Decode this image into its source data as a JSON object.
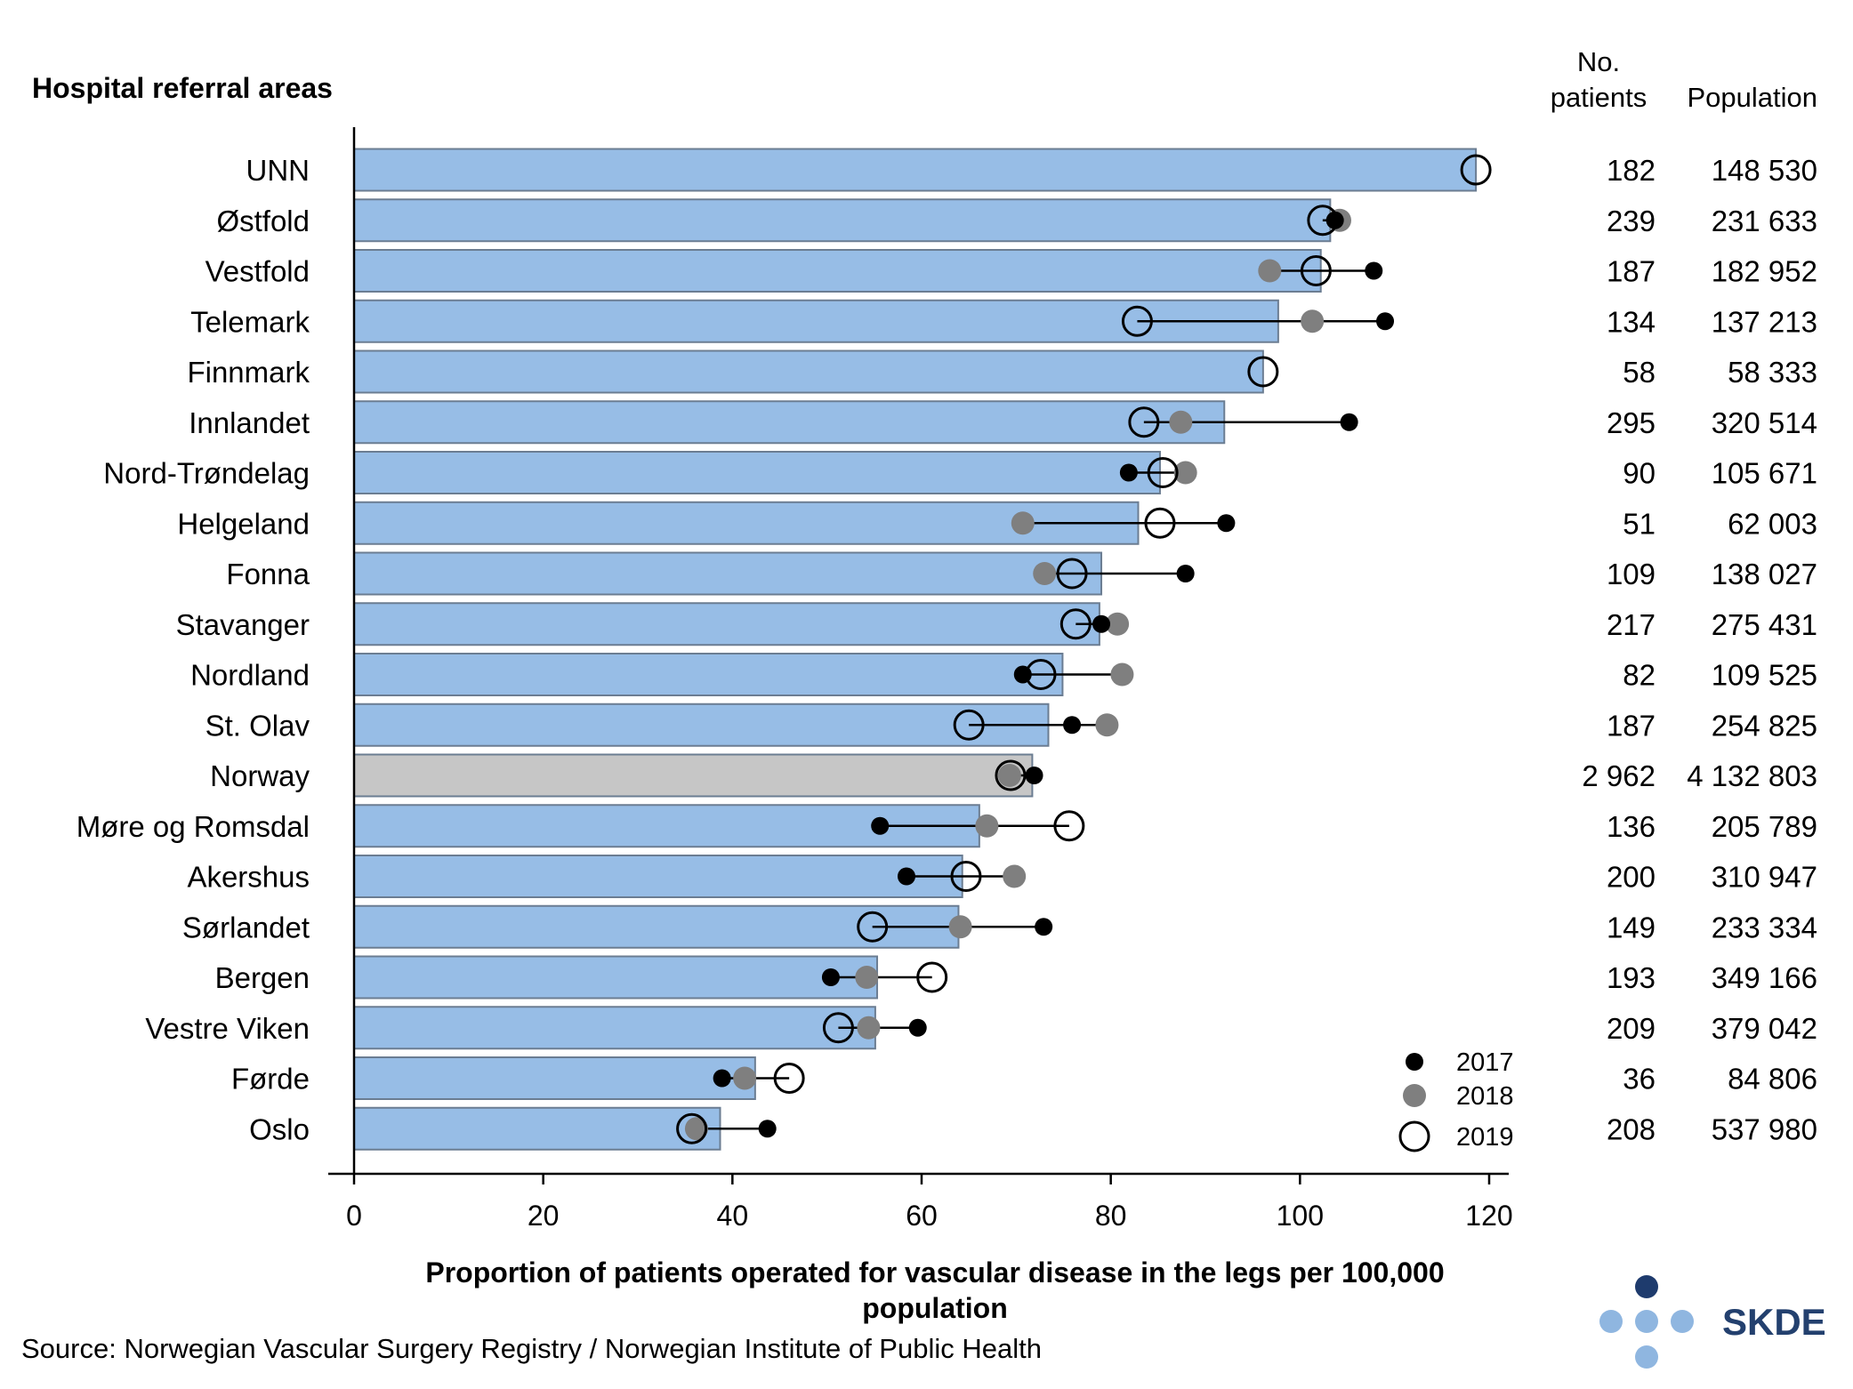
{
  "chart_data": {
    "type": "bar",
    "title": "Hospital referral areas",
    "xlabel_lines": [
      "Proportion of patients operated for vascular disease in the legs per 100,000",
      "population"
    ],
    "ylabel": "",
    "xlim": [
      0,
      120
    ],
    "xticks": [
      0,
      20,
      40,
      60,
      80,
      100,
      120
    ],
    "columns": {
      "patients_lines": [
        "No.",
        "patients"
      ],
      "population": "Population"
    },
    "colors": {
      "bar": "#97bde6",
      "bar_stroke": "#6b7d92",
      "national_bar": "#c6c6c6",
      "y2017": "#000000",
      "y2018": "#7f7f7f",
      "y2019_stroke": "#000000"
    },
    "legend": [
      {
        "name": "2017",
        "style": "dot-black"
      },
      {
        "name": "2018",
        "style": "dot-grey"
      },
      {
        "name": "2019",
        "style": "circle-open"
      }
    ],
    "categories": [
      {
        "name": "UNN",
        "bar": 118.6,
        "y2017": null,
        "y2018": null,
        "y2019": 118.6,
        "patients": "182",
        "population": "148 530"
      },
      {
        "name": "Østfold",
        "bar": 103.2,
        "y2017": 103.7,
        "y2018": 104.2,
        "y2019": 102.4,
        "patients": "239",
        "population": "231 633"
      },
      {
        "name": "Vestfold",
        "bar": 102.2,
        "y2017": 107.8,
        "y2018": 96.8,
        "y2019": 101.7,
        "patients": "187",
        "population": "182 952"
      },
      {
        "name": "Telemark",
        "bar": 97.7,
        "y2017": 109.0,
        "y2018": 101.3,
        "y2019": 82.8,
        "patients": "134",
        "population": "137 213"
      },
      {
        "name": "Finnmark",
        "bar": 96.1,
        "y2017": null,
        "y2018": null,
        "y2019": 96.1,
        "patients": "58",
        "population": "58 333"
      },
      {
        "name": "Innlandet",
        "bar": 92.0,
        "y2017": 105.2,
        "y2018": 87.4,
        "y2019": 83.5,
        "patients": "295",
        "population": "320 514"
      },
      {
        "name": "Nord-Trøndelag",
        "bar": 85.2,
        "y2017": 81.9,
        "y2018": 87.9,
        "y2019": 85.5,
        "patients": "90",
        "population": "105 671"
      },
      {
        "name": "Helgeland",
        "bar": 82.9,
        "y2017": 92.2,
        "y2018": 70.7,
        "y2019": 85.2,
        "patients": "51",
        "population": "62 003"
      },
      {
        "name": "Fonna",
        "bar": 79.0,
        "y2017": 87.9,
        "y2018": 73.0,
        "y2019": 75.9,
        "patients": "109",
        "population": "138 027"
      },
      {
        "name": "Stavanger",
        "bar": 78.8,
        "y2017": 79.0,
        "y2018": 80.7,
        "y2019": 76.3,
        "patients": "217",
        "population": "275 431"
      },
      {
        "name": "Nordland",
        "bar": 74.9,
        "y2017": 70.7,
        "y2018": 81.2,
        "y2019": 72.6,
        "patients": "82",
        "population": "109 525"
      },
      {
        "name": "St. Olav",
        "bar": 73.4,
        "y2017": 75.9,
        "y2018": 79.6,
        "y2019": 65.0,
        "patients": "187",
        "population": "254 825"
      },
      {
        "name": "Norway",
        "bar": 71.7,
        "y2017": 71.9,
        "y2018": 69.3,
        "y2019": 69.4,
        "patients": "2 962",
        "population": "4 132 803",
        "national": true
      },
      {
        "name": "Møre og Romsdal",
        "bar": 66.1,
        "y2017": 55.6,
        "y2018": 66.9,
        "y2019": 75.6,
        "patients": "136",
        "population": "205 789"
      },
      {
        "name": "Akershus",
        "bar": 64.3,
        "y2017": 58.4,
        "y2018": 69.8,
        "y2019": 64.7,
        "patients": "200",
        "population": "310 947"
      },
      {
        "name": "Sørlandet",
        "bar": 63.9,
        "y2017": 72.9,
        "y2018": 64.1,
        "y2019": 54.8,
        "patients": "149",
        "population": "233 334"
      },
      {
        "name": "Bergen",
        "bar": 55.3,
        "y2017": 50.4,
        "y2018": 54.2,
        "y2019": 61.1,
        "patients": "193",
        "population": "349 166"
      },
      {
        "name": "Vestre Viken",
        "bar": 55.1,
        "y2017": 59.6,
        "y2018": 54.4,
        "y2019": 51.2,
        "patients": "209",
        "population": "379 042"
      },
      {
        "name": "Førde",
        "bar": 42.4,
        "y2017": 38.9,
        "y2018": 41.3,
        "y2019": 46.0,
        "patients": "36",
        "population": "84 806"
      },
      {
        "name": "Oslo",
        "bar": 38.7,
        "y2017": 43.7,
        "y2018": 36.2,
        "y2019": 35.7,
        "patients": "208",
        "population": "537 980"
      }
    ]
  },
  "source": "Source: Norwegian Vascular Surgery Registry / Norwegian Institute of Public Health",
  "logo": {
    "text": "SKDE",
    "color": "#23406e",
    "dot_color": "#8fb6e0",
    "top_dot_color": "#1e3b6d"
  }
}
